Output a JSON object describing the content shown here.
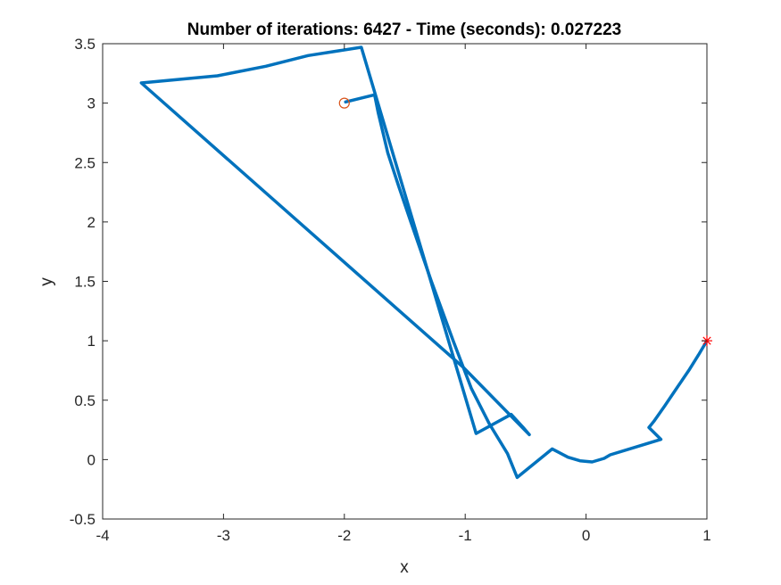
{
  "chart_data": {
    "type": "line",
    "title": "Number of iterations: 6427 - Time (seconds): 0.027223",
    "xlabel": "x",
    "ylabel": "y",
    "xlim": [
      -4,
      1
    ],
    "ylim": [
      -0.5,
      3.5
    ],
    "xticks": [
      -4,
      -3,
      -2,
      -1,
      0,
      1
    ],
    "yticks": [
      -0.5,
      0,
      0.5,
      1,
      1.5,
      2,
      2.5,
      3,
      3.5
    ],
    "xtick_labels": [
      "-4",
      "-3",
      "-2",
      "-1",
      "0",
      "1"
    ],
    "ytick_labels": [
      "-0.5",
      "0",
      "0.5",
      "1",
      "1.5",
      "2",
      "2.5",
      "3",
      "3.5"
    ],
    "grid": false,
    "series": [
      {
        "x": [
          -1.99,
          -1.75,
          -1.72,
          -1.68,
          -1.64,
          -1.55,
          -1.45,
          -1.28,
          -1.1,
          -0.95,
          -0.8,
          -0.65,
          -0.57,
          -0.28,
          -0.15,
          -0.05,
          0.05,
          0.15,
          0.2,
          0.62,
          0.52,
          0.56,
          0.65,
          0.75,
          0.85,
          0.93,
          1.0
        ],
        "y": [
          3.01,
          3.07,
          2.92,
          2.75,
          2.58,
          2.3,
          2.0,
          1.5,
          1.0,
          0.6,
          0.3,
          0.05,
          -0.15,
          0.09,
          0.02,
          -0.01,
          -0.02,
          0.01,
          0.04,
          0.17,
          0.27,
          0.32,
          0.45,
          0.6,
          0.75,
          0.88,
          1.0
        ],
        "color": "#0072BD"
      },
      {
        "x": [
          -0.47,
          -0.52,
          -0.62,
          -0.91,
          -1.86,
          -2.3,
          -2.65,
          -3.05,
          -3.68,
          -1.02,
          -0.47
        ],
        "y": [
          0.21,
          0.27,
          0.38,
          0.22,
          3.47,
          3.4,
          3.31,
          3.23,
          3.17,
          0.78,
          0.21
        ],
        "color": "#0072BD"
      }
    ],
    "markers": [
      {
        "label": "start",
        "x": -2,
        "y": 3,
        "shape": "circle",
        "color": "#D95319"
      },
      {
        "label": "end",
        "x": 1,
        "y": 1,
        "shape": "asterisk",
        "color": "#FF0000"
      }
    ]
  }
}
